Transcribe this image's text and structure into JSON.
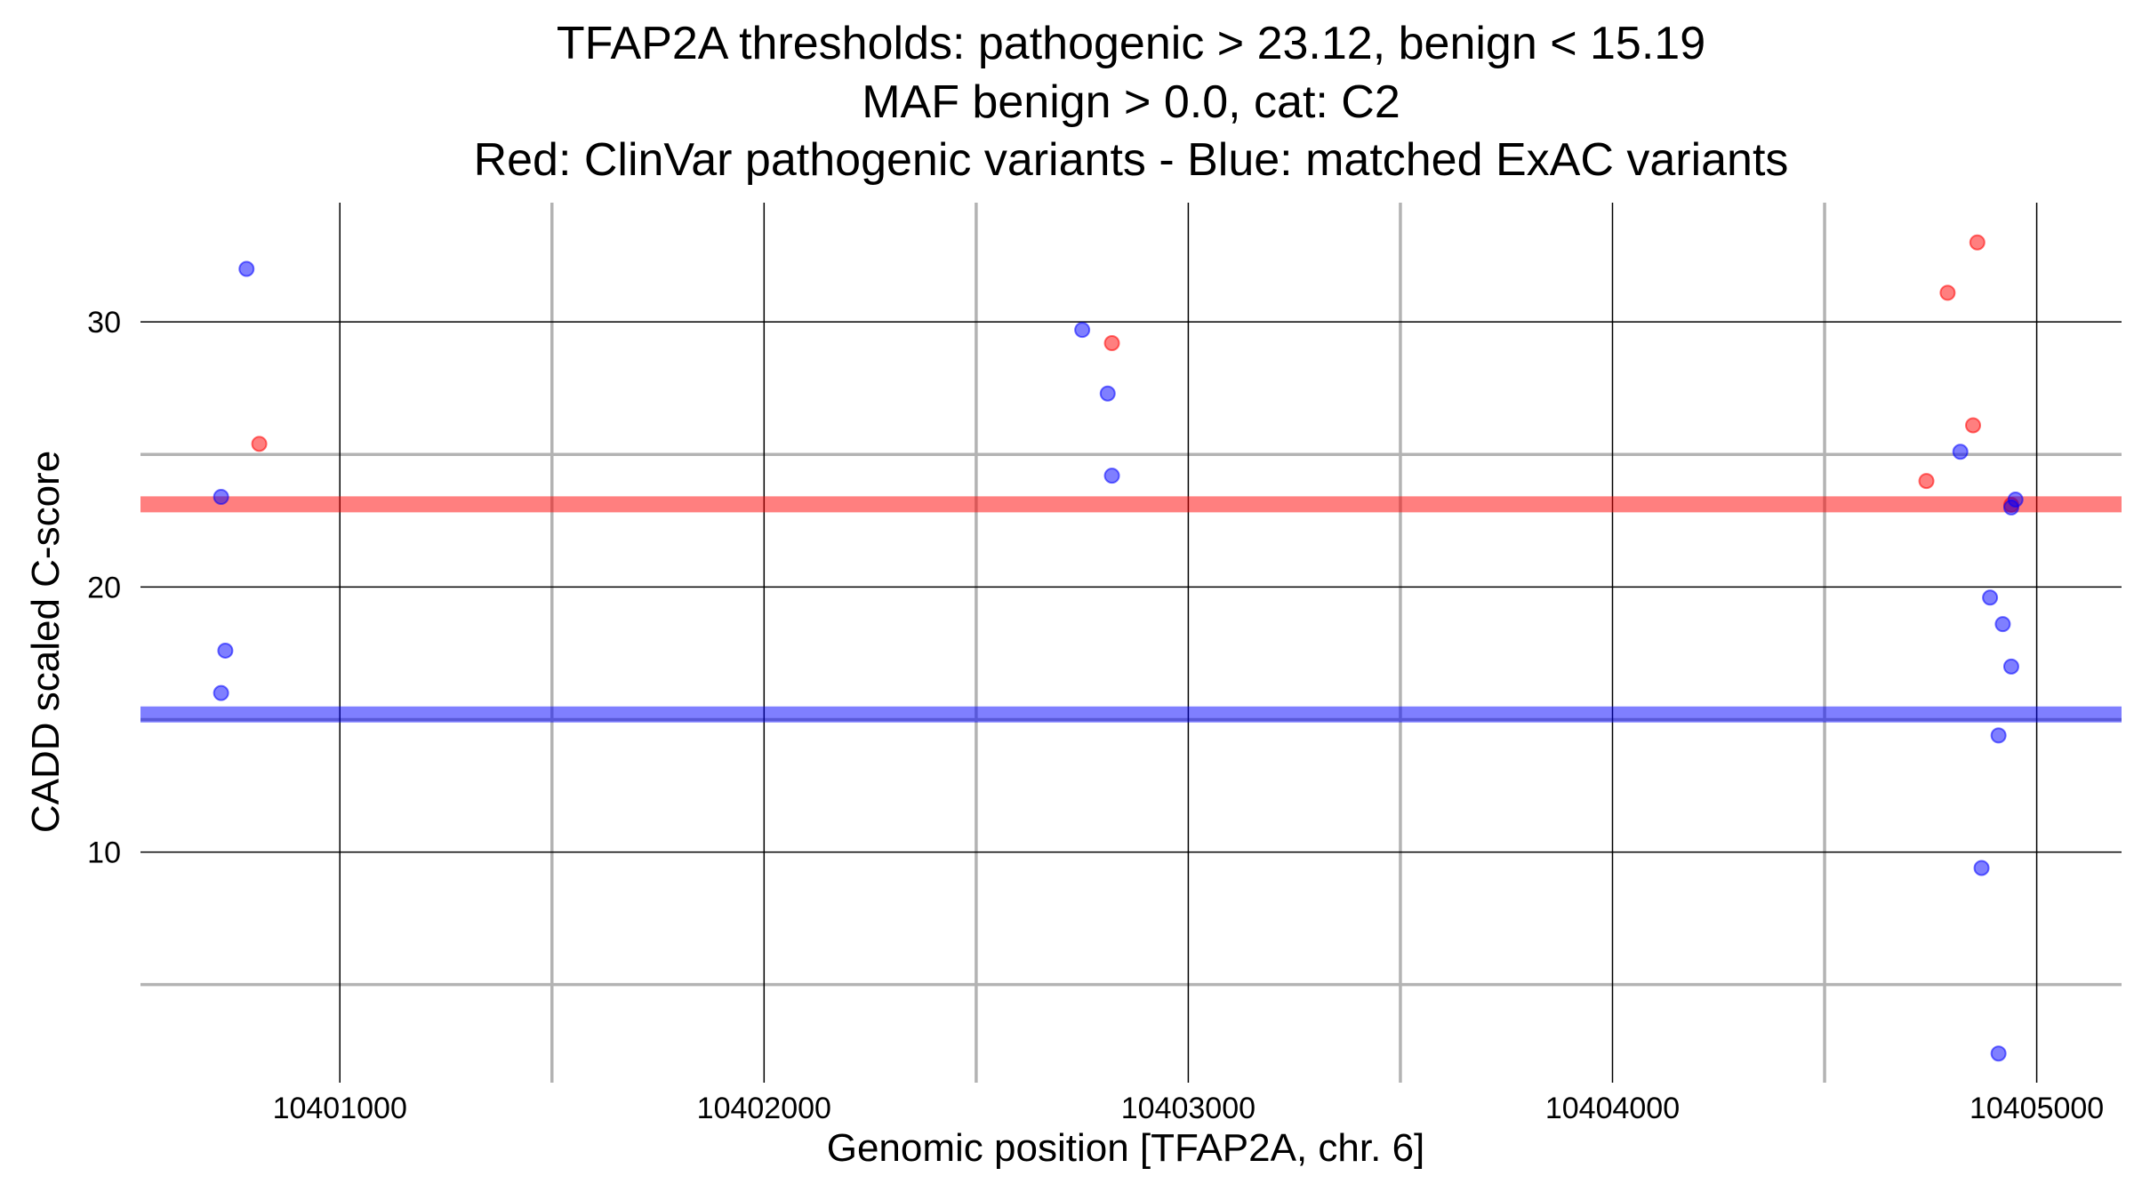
{
  "chart_data": {
    "type": "scatter",
    "title_lines": [
      "TFAP2A thresholds: pathogenic > 23.12, benign < 15.19",
      "MAF benign > 0.0, cat: C2",
      "Red: ClinVar pathogenic variants - Blue: matched ExAC variants"
    ],
    "xlabel": "Genomic position [TFAP2A, chr. 6]",
    "ylabel": "CADD scaled C-score",
    "xlim": [
      10400530,
      10405200
    ],
    "ylim": [
      1.3,
      34.5
    ],
    "x_ticks": [
      10401000,
      10402000,
      10403000,
      10404000,
      10405000
    ],
    "x_tick_labels": [
      "10401000",
      "10402000",
      "10403000",
      "10404000",
      "10405000"
    ],
    "x_minor_grid": [
      10401500,
      10402500,
      10403500,
      10404500
    ],
    "y_ticks": [
      10,
      20,
      30
    ],
    "y_tick_labels": [
      "10",
      "20",
      "30"
    ],
    "y_minor_grid": [
      5,
      15,
      25
    ],
    "grid": true,
    "thresholds": [
      {
        "name": "pathogenic",
        "value": 23.12,
        "color": "#ff0000"
      },
      {
        "name": "benign",
        "value": 15.19,
        "color": "#0000ff"
      }
    ],
    "series": [
      {
        "color": "#ff0000",
        "points": [
          {
            "x": 10400810,
            "y": 25.4
          },
          {
            "x": 10402820,
            "y": 29.2
          },
          {
            "x": 10404740,
            "y": 24.0
          },
          {
            "x": 10404790,
            "y": 31.1
          },
          {
            "x": 10404850,
            "y": 26.1
          },
          {
            "x": 10404860,
            "y": 33.0
          },
          {
            "x": 10404940,
            "y": 23.1
          }
        ]
      },
      {
        "color": "#0000ff",
        "points": [
          {
            "x": 10400720,
            "y": 23.4
          },
          {
            "x": 10400730,
            "y": 17.6
          },
          {
            "x": 10400720,
            "y": 16.0
          },
          {
            "x": 10400780,
            "y": 32.0
          },
          {
            "x": 10402750,
            "y": 29.7
          },
          {
            "x": 10402810,
            "y": 27.3
          },
          {
            "x": 10402820,
            "y": 24.2
          },
          {
            "x": 10404820,
            "y": 25.1
          },
          {
            "x": 10404870,
            "y": 9.4
          },
          {
            "x": 10404890,
            "y": 19.6
          },
          {
            "x": 10404910,
            "y": 2.4
          },
          {
            "x": 10404910,
            "y": 14.4
          },
          {
            "x": 10404920,
            "y": 18.6
          },
          {
            "x": 10404940,
            "y": 17.0
          },
          {
            "x": 10404940,
            "y": 23.0
          },
          {
            "x": 10404950,
            "y": 23.3
          }
        ]
      }
    ]
  }
}
